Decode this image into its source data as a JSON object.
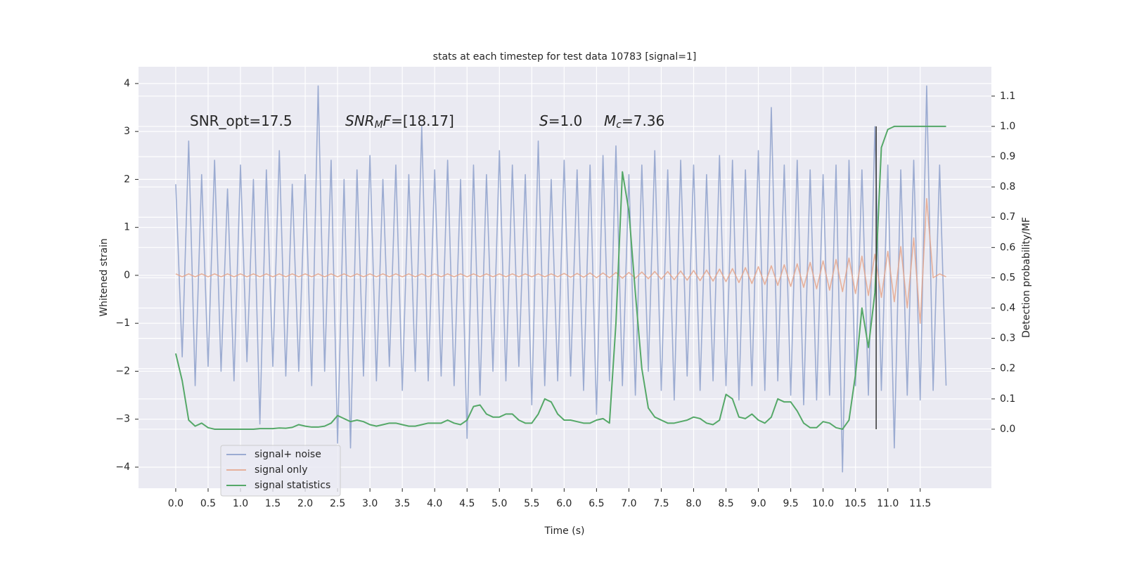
{
  "chart_data": {
    "type": "line",
    "title": "stats at each timestep for test data 10783 [signal=1]",
    "xlabel": "Time (s)",
    "ylabel": "Whitened strain",
    "y2label": "Detection probability/MF",
    "xlim": [
      -0.575,
      12.6
    ],
    "ylim": [
      -4.44,
      4.35
    ],
    "y2lim": [
      -0.195,
      1.197
    ],
    "xticks": [
      {
        "value": 0,
        "label": "0.0"
      },
      {
        "value": 0.5,
        "label": "0.5"
      },
      {
        "value": 1,
        "label": "1.0"
      },
      {
        "value": 1.5,
        "label": "1.5"
      },
      {
        "value": 2,
        "label": "2.0"
      },
      {
        "value": 2.5,
        "label": "2.5"
      },
      {
        "value": 3,
        "label": "3.0"
      },
      {
        "value": 3.5,
        "label": "3.5"
      },
      {
        "value": 4,
        "label": "4.0"
      },
      {
        "value": 4.5,
        "label": "4.5"
      },
      {
        "value": 5,
        "label": "5.0"
      },
      {
        "value": 5.5,
        "label": "5.5"
      },
      {
        "value": 6,
        "label": "6.0"
      },
      {
        "value": 6.5,
        "label": "6.5"
      },
      {
        "value": 7,
        "label": "7.0"
      },
      {
        "value": 7.5,
        "label": "7.5"
      },
      {
        "value": 8,
        "label": "8.0"
      },
      {
        "value": 8.5,
        "label": "8.5"
      },
      {
        "value": 9,
        "label": "9.0"
      },
      {
        "value": 9.5,
        "label": "9.5"
      },
      {
        "value": 10,
        "label": "10.0"
      },
      {
        "value": 10.5,
        "label": "10.5"
      },
      {
        "value": 11,
        "label": "11.0"
      },
      {
        "value": 11.5,
        "label": "11.5"
      }
    ],
    "yticks": [
      {
        "value": -4,
        "label": "−4"
      },
      {
        "value": -3,
        "label": "−3"
      },
      {
        "value": -2,
        "label": "−2"
      },
      {
        "value": -1,
        "label": "−1"
      },
      0,
      1,
      2,
      3,
      4
    ],
    "y2ticks": [
      {
        "value": 0,
        "label": "0.0"
      },
      {
        "value": 0.1,
        "label": "0.1"
      },
      {
        "value": 0.2,
        "label": "0.2"
      },
      {
        "value": 0.3,
        "label": "0.3"
      },
      {
        "value": 0.4,
        "label": "0.4"
      },
      {
        "value": 0.5,
        "label": "0.5"
      },
      {
        "value": 0.6,
        "label": "0.6"
      },
      {
        "value": 0.7,
        "label": "0.7"
      },
      {
        "value": 0.8,
        "label": "0.8"
      },
      {
        "value": 0.9,
        "label": "0.9"
      },
      {
        "value": 1,
        "label": "1.0"
      },
      {
        "value": 1.1,
        "label": "1.1"
      }
    ],
    "grid": true,
    "x": [
      0,
      0.1,
      0.2,
      0.3,
      0.4,
      0.5,
      0.6,
      0.7,
      0.8,
      0.9,
      1,
      1.1,
      1.2,
      1.3,
      1.4,
      1.5,
      1.6,
      1.7,
      1.8,
      1.9,
      2,
      2.1,
      2.2,
      2.3,
      2.4,
      2.5,
      2.6,
      2.7,
      2.8,
      2.9,
      3,
      3.1,
      3.2,
      3.3,
      3.4,
      3.5,
      3.6,
      3.7,
      3.8,
      3.9,
      4,
      4.1,
      4.2,
      4.3,
      4.4,
      4.5,
      4.6,
      4.7,
      4.8,
      4.9,
      5,
      5.1,
      5.2,
      5.3,
      5.4,
      5.5,
      5.6,
      5.7,
      5.8,
      5.9,
      6,
      6.1,
      6.2,
      6.3,
      6.4,
      6.5,
      6.6,
      6.7,
      6.8,
      6.9,
      7,
      7.1,
      7.2,
      7.3,
      7.4,
      7.5,
      7.6,
      7.7,
      7.8,
      7.9,
      8,
      8.1,
      8.2,
      8.3,
      8.4,
      8.5,
      8.6,
      8.7,
      8.8,
      8.9,
      9,
      9.1,
      9.2,
      9.3,
      9.4,
      9.5,
      9.6,
      9.7,
      9.8,
      9.9,
      10,
      10.1,
      10.2,
      10.3,
      10.4,
      10.5,
      10.6,
      10.7,
      10.8,
      10.9,
      11,
      11.1,
      11.2,
      11.3,
      11.4,
      11.5,
      11.6,
      11.7,
      11.8,
      11.9
    ],
    "series": [
      {
        "name": "signal+ noise",
        "color": "#8da0cb",
        "opacity": 0.85,
        "values": [
          1.9,
          -1.7,
          2.8,
          -2.3,
          2.1,
          -1.9,
          2.4,
          -2.0,
          1.8,
          -2.2,
          2.3,
          -1.8,
          2.0,
          -3.1,
          2.2,
          -1.9,
          2.6,
          -2.1,
          1.9,
          -2.0,
          2.1,
          -2.3,
          3.95,
          -2.0,
          2.4,
          -3.5,
          2.0,
          -3.6,
          2.2,
          -2.1,
          2.5,
          -2.2,
          2.0,
          -1.9,
          2.3,
          -2.4,
          2.1,
          -2.0,
          3.1,
          -2.2,
          2.2,
          -2.1,
          2.4,
          -2.3,
          2.0,
          -3.4,
          2.3,
          -2.5,
          2.1,
          -2.0,
          2.6,
          -2.2,
          2.3,
          -1.9,
          2.1,
          -2.7,
          2.8,
          -2.3,
          2.0,
          -2.2,
          2.4,
          -2.1,
          2.2,
          -2.4,
          2.3,
          -2.9,
          2.5,
          -2.2,
          2.7,
          -2.3,
          2.1,
          -2.5,
          2.3,
          -2.0,
          2.6,
          -2.4,
          2.2,
          -2.6,
          2.4,
          -2.1,
          2.3,
          -2.4,
          2.1,
          -2.2,
          2.5,
          -2.3,
          2.4,
          -2.6,
          2.2,
          -2.3,
          2.6,
          -2.4,
          3.5,
          -2.2,
          2.3,
          -2.5,
          2.4,
          -2.7,
          2.2,
          -2.6,
          2.1,
          -2.5,
          2.3,
          -4.1,
          2.4,
          -2.3,
          2.2,
          -2.5,
          3.1,
          -2.4,
          2.3,
          -3.6,
          2.2,
          -2.5,
          2.4,
          -2.6,
          3.95,
          -2.4,
          2.3,
          -2.3
        ]
      },
      {
        "name": "signal only",
        "color": "#e5a68c",
        "opacity": 0.85,
        "values": [
          0.03,
          -0.03,
          0.03,
          -0.03,
          0.03,
          -0.03,
          0.03,
          -0.03,
          0.03,
          -0.03,
          0.03,
          -0.03,
          0.03,
          -0.03,
          0.03,
          -0.03,
          0.03,
          -0.03,
          0.03,
          -0.03,
          0.03,
          -0.03,
          0.03,
          -0.03,
          0.03,
          -0.03,
          0.03,
          -0.03,
          0.03,
          -0.03,
          0.03,
          -0.03,
          0.03,
          -0.03,
          0.03,
          -0.03,
          0.03,
          -0.03,
          0.03,
          -0.03,
          0.03,
          -0.03,
          0.03,
          -0.03,
          0.03,
          -0.03,
          0.03,
          -0.03,
          0.03,
          -0.03,
          0.03,
          -0.03,
          0.03,
          -0.03,
          0.03,
          -0.03,
          0.03,
          -0.03,
          0.03,
          -0.03,
          0.04,
          -0.04,
          0.04,
          -0.04,
          0.05,
          -0.05,
          0.05,
          -0.05,
          0.06,
          -0.06,
          0.06,
          -0.06,
          0.07,
          -0.07,
          0.08,
          -0.08,
          0.08,
          -0.09,
          0.09,
          -0.1,
          0.1,
          -0.11,
          0.11,
          -0.12,
          0.13,
          -0.13,
          0.14,
          -0.15,
          0.16,
          -0.17,
          0.18,
          -0.19,
          0.2,
          -0.21,
          0.22,
          -0.23,
          0.24,
          -0.25,
          0.27,
          -0.28,
          0.3,
          -0.31,
          0.33,
          -0.34,
          0.36,
          -0.38,
          0.4,
          -0.42,
          0.44,
          -0.46,
          0.5,
          -0.55,
          0.6,
          -0.68,
          0.78,
          -1.0,
          1.6,
          -0.05,
          0.03,
          -0.03
        ]
      },
      {
        "name": "signal statistics",
        "color": "#55a868",
        "axis": "y2",
        "values": [
          0.25,
          0.16,
          0.03,
          0.01,
          0.02,
          0.005,
          0,
          0,
          0,
          0,
          0,
          0,
          0,
          0.002,
          0.002,
          0.002,
          0.004,
          0.003,
          0.006,
          0.015,
          0.01,
          0.007,
          0.007,
          0.01,
          0.02,
          0.045,
          0.035,
          0.025,
          0.03,
          0.025,
          0.015,
          0.01,
          0.015,
          0.02,
          0.02,
          0.015,
          0.01,
          0.01,
          0.015,
          0.02,
          0.02,
          0.02,
          0.03,
          0.02,
          0.015,
          0.03,
          0.075,
          0.08,
          0.05,
          0.04,
          0.04,
          0.05,
          0.05,
          0.03,
          0.02,
          0.02,
          0.05,
          0.1,
          0.09,
          0.05,
          0.03,
          0.03,
          0.025,
          0.02,
          0.02,
          0.03,
          0.035,
          0.02,
          0.35,
          0.85,
          0.72,
          0.45,
          0.2,
          0.07,
          0.04,
          0.03,
          0.02,
          0.02,
          0.025,
          0.03,
          0.04,
          0.035,
          0.02,
          0.015,
          0.03,
          0.115,
          0.1,
          0.04,
          0.035,
          0.05,
          0.03,
          0.02,
          0.04,
          0.1,
          0.09,
          0.09,
          0.06,
          0.02,
          0.005,
          0.005,
          0.025,
          0.02,
          0.005,
          0,
          0.03,
          0.18,
          0.4,
          0.27,
          0.45,
          0.93,
          0.99,
          1,
          1,
          1,
          1,
          1,
          1,
          1,
          1,
          1
        ]
      }
    ],
    "vline": {
      "x": 10.82,
      "y2": [
        0,
        1
      ],
      "color": "#333333"
    },
    "annotations": [
      [
        {
          "text": "SNR_opt=17.5",
          "style": "normal"
        }
      ],
      [
        {
          "text": "SNR",
          "style": "italic"
        },
        {
          "text": "M",
          "style": "sub"
        },
        {
          "text": "F",
          "style": "italic"
        },
        {
          "text": "=[18.17]",
          "style": "normal"
        }
      ],
      [
        {
          "text": "S",
          "style": "italic"
        },
        {
          "text": "=1.0",
          "style": "normal"
        }
      ],
      [
        {
          "text": "M",
          "style": "italic"
        },
        {
          "text": "c",
          "style": "sub"
        },
        {
          "text": "=7.36",
          "style": "normal"
        }
      ]
    ]
  }
}
